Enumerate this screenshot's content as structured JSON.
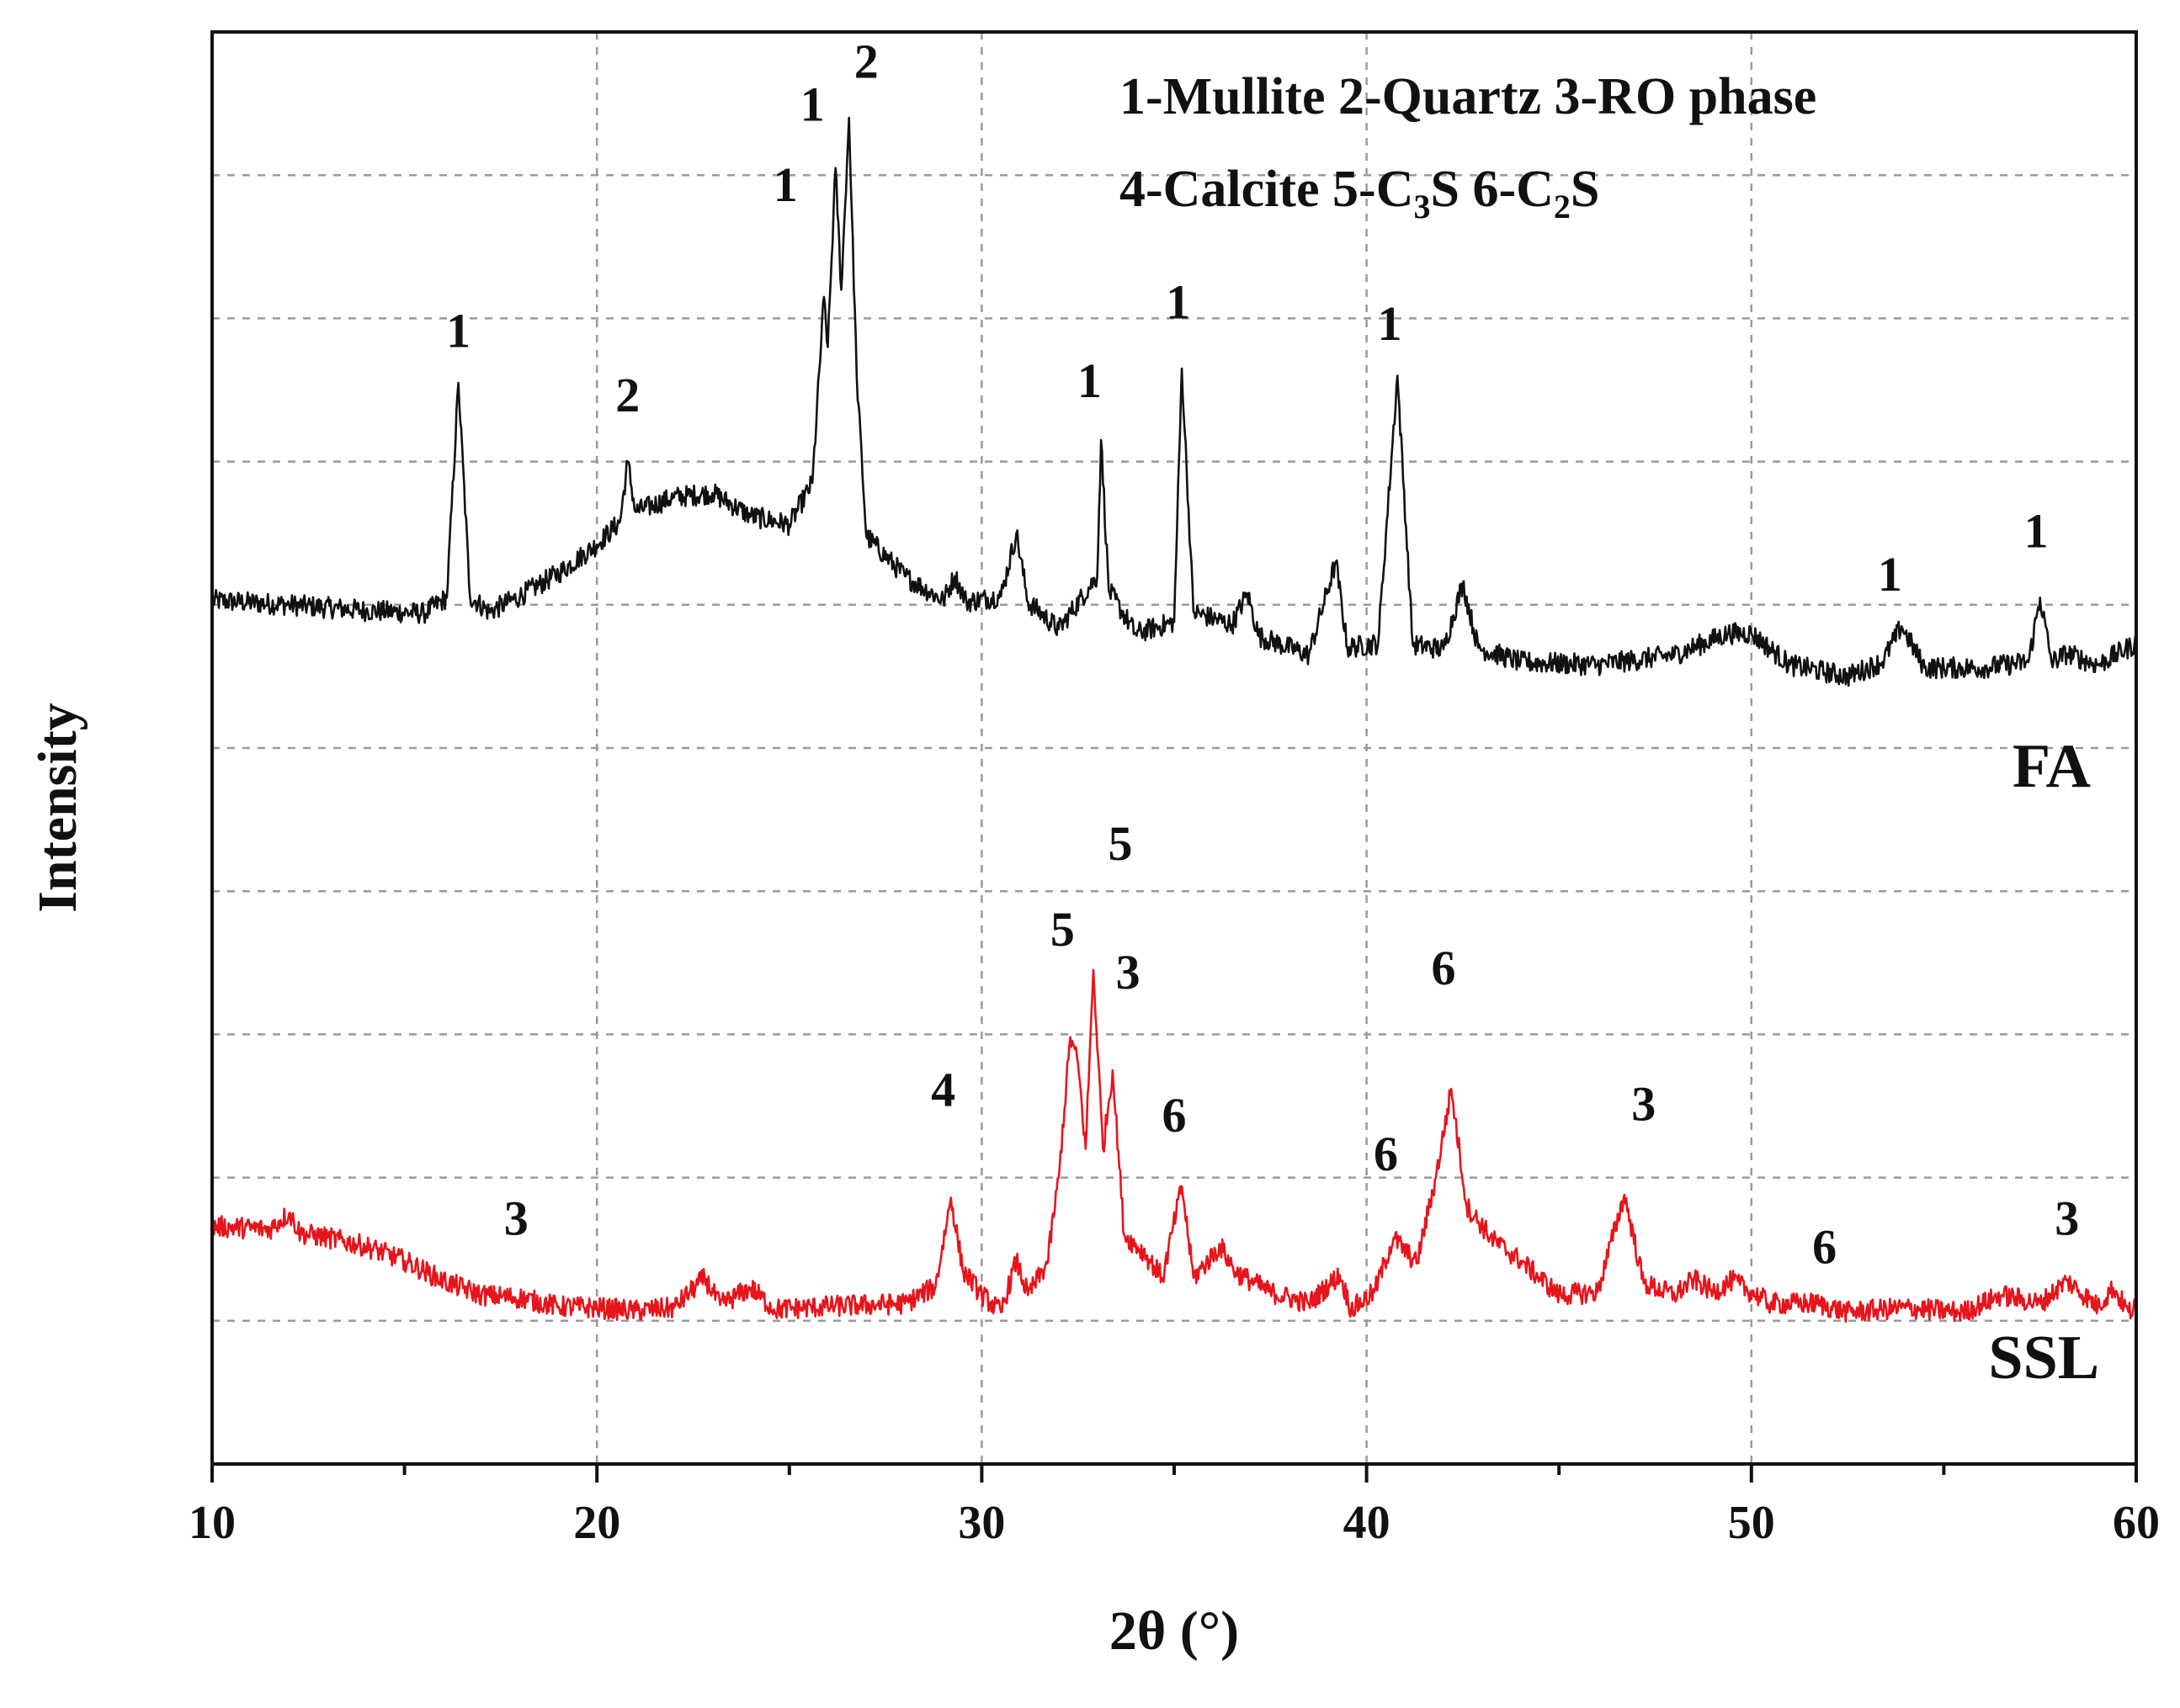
{
  "chart_data": {
    "type": "line",
    "xlabel": "2θ (°)",
    "ylabel": "Intensity",
    "xlim": [
      10,
      60
    ],
    "ylim": [
      0,
      100
    ],
    "xticks": [
      10,
      20,
      30,
      40,
      50,
      60
    ],
    "grid": true,
    "legend_lines": [
      "1-Mullite  2-Quartz  3-RO phase",
      "4-Calcite  5-C3S  6-C2S"
    ],
    "series": [
      {
        "name": "FA",
        "color": "#111111",
        "points": [
          [
            10,
            60.3
          ],
          [
            12,
            60.0
          ],
          [
            14,
            59.6
          ],
          [
            15.5,
            59.4
          ],
          [
            16.1,
            60.5
          ],
          [
            16.4,
            75.5
          ],
          [
            16.7,
            60.6
          ],
          [
            17.2,
            59.5
          ],
          [
            18,
            60.6
          ],
          [
            19,
            62.2
          ],
          [
            20,
            64.2
          ],
          [
            20.6,
            65.8
          ],
          [
            20.8,
            70.0
          ],
          [
            21.0,
            66.5
          ],
          [
            22,
            67.5
          ],
          [
            23,
            67.8
          ],
          [
            24,
            66.2
          ],
          [
            25,
            65.6
          ],
          [
            25.6,
            68.5
          ],
          [
            25.9,
            81.5
          ],
          [
            26.0,
            78.0
          ],
          [
            26.2,
            90.5
          ],
          [
            26.35,
            82.0
          ],
          [
            26.55,
            94.0
          ],
          [
            26.75,
            76.0
          ],
          [
            27.0,
            64.8
          ],
          [
            28,
            62.0
          ],
          [
            29.0,
            60.3
          ],
          [
            29.3,
            62.0
          ],
          [
            29.6,
            60.2
          ],
          [
            30.5,
            60.6
          ],
          [
            30.9,
            65.0
          ],
          [
            31.2,
            60.2
          ],
          [
            32,
            58.3
          ],
          [
            33.0,
            62.0
          ],
          [
            33.1,
            71.5
          ],
          [
            33.3,
            61.0
          ],
          [
            34,
            58.0
          ],
          [
            35.0,
            58.8
          ],
          [
            35.2,
            76.5
          ],
          [
            35.5,
            59.5
          ],
          [
            36.5,
            58.6
          ],
          [
            36.9,
            60.8
          ],
          [
            37.2,
            57.8
          ],
          [
            38.5,
            56.5
          ],
          [
            39.2,
            63.0
          ],
          [
            39.5,
            57.0
          ],
          [
            40.3,
            57.3
          ],
          [
            40.8,
            76.0
          ],
          [
            41.2,
            57.2
          ],
          [
            42,
            56.9
          ],
          [
            42.5,
            61.5
          ],
          [
            42.9,
            57.0
          ],
          [
            44,
            56.0
          ],
          [
            46,
            55.8
          ],
          [
            48,
            56.5
          ],
          [
            49.4,
            58.0
          ],
          [
            50,
            58.0
          ],
          [
            51,
            55.8
          ],
          [
            52.5,
            55.0
          ],
          [
            53.4,
            56.0
          ],
          [
            53.9,
            58.5
          ],
          [
            54.5,
            55.6
          ],
          [
            56,
            55.6
          ],
          [
            57.2,
            56.0
          ],
          [
            57.5,
            60.5
          ],
          [
            57.8,
            56.0
          ],
          [
            58.2,
            56.6
          ],
          [
            59,
            55.8
          ],
          [
            60,
            57.3
          ]
        ]
      },
      {
        "name": "SSL",
        "color": "#e8141b",
        "points": [
          [
            10,
            16.6
          ],
          [
            11.5,
            16.4
          ],
          [
            12,
            17.5
          ],
          [
            12.3,
            16.1
          ],
          [
            13,
            15.8
          ],
          [
            14,
            15.2
          ],
          [
            15,
            14.2
          ],
          [
            16,
            12.8
          ],
          [
            17,
            11.8
          ],
          [
            18,
            11.6
          ],
          [
            19,
            11.0
          ],
          [
            20,
            10.9
          ],
          [
            21,
            10.7
          ],
          [
            22,
            10.9
          ],
          [
            22.8,
            13.0
          ],
          [
            23.2,
            11.1
          ],
          [
            24,
            12.3
          ],
          [
            24.6,
            10.8
          ],
          [
            26,
            11.0
          ],
          [
            28,
            11.2
          ],
          [
            28.8,
            12.4
          ],
          [
            29.2,
            18.6
          ],
          [
            29.5,
            13.6
          ],
          [
            30,
            11.8
          ],
          [
            30.5,
            10.6
          ],
          [
            30.9,
            14.2
          ],
          [
            31.2,
            11.8
          ],
          [
            31.7,
            14.0
          ],
          [
            32.0,
            20.0
          ],
          [
            32.3,
            29.8
          ],
          [
            32.5,
            28.0
          ],
          [
            32.7,
            22.0
          ],
          [
            32.9,
            34.5
          ],
          [
            33.15,
            22.0
          ],
          [
            33.4,
            27.5
          ],
          [
            33.7,
            16.0
          ],
          [
            34.2,
            14.8
          ],
          [
            34.7,
            13.0
          ],
          [
            35.2,
            19.4
          ],
          [
            35.5,
            13.0
          ],
          [
            36.2,
            15.2
          ],
          [
            36.6,
            13.4
          ],
          [
            37.5,
            12.0
          ],
          [
            38.5,
            11.2
          ],
          [
            39.3,
            13.2
          ],
          [
            39.6,
            10.8
          ],
          [
            40.2,
            12.0
          ],
          [
            40.7,
            15.8
          ],
          [
            41.3,
            14.0
          ],
          [
            41.8,
            20.0
          ],
          [
            42.2,
            26.2
          ],
          [
            42.6,
            18.0
          ],
          [
            43.3,
            15.6
          ],
          [
            44,
            14.2
          ],
          [
            45,
            11.8
          ],
          [
            46,
            12.0
          ],
          [
            46.7,
            18.8
          ],
          [
            47.2,
            12.6
          ],
          [
            48,
            11.8
          ],
          [
            48.5,
            12.9
          ],
          [
            49,
            12.0
          ],
          [
            49.5,
            12.8
          ],
          [
            50.5,
            11.2
          ],
          [
            51.7,
            11.2
          ],
          [
            52.5,
            10.6
          ],
          [
            54,
            10.9
          ],
          [
            55.5,
            10.6
          ],
          [
            56.5,
            11.8
          ],
          [
            57.5,
            11.2
          ],
          [
            58.2,
            12.8
          ],
          [
            59,
            11.0
          ],
          [
            59.4,
            12.3
          ],
          [
            59.8,
            10.6
          ],
          [
            60,
            11.0
          ]
        ]
      }
    ],
    "series_labels": [
      {
        "text": "FA",
        "x": 57.8,
        "y": 47.3
      },
      {
        "text": "SSL",
        "x": 57.6,
        "y": 6.0
      }
    ],
    "annotations": [
      {
        "text": "1",
        "series": "FA",
        "x": 16.4,
        "y": 78.0
      },
      {
        "text": "2",
        "series": "FA",
        "x": 20.8,
        "y": 73.5
      },
      {
        "text": "1",
        "series": "FA",
        "x": 24.9,
        "y": 88.2
      },
      {
        "text": "1",
        "series": "FA",
        "x": 25.6,
        "y": 93.8
      },
      {
        "text": "2",
        "series": "FA",
        "x": 27.0,
        "y": 96.8
      },
      {
        "text": "1",
        "series": "FA",
        "x": 32.8,
        "y": 74.5
      },
      {
        "text": "1",
        "series": "FA",
        "x": 35.1,
        "y": 80.0
      },
      {
        "text": "1",
        "series": "FA",
        "x": 40.6,
        "y": 78.5
      },
      {
        "text": "1",
        "series": "FA",
        "x": 53.6,
        "y": 61.0
      },
      {
        "text": "1",
        "series": "FA",
        "x": 57.4,
        "y": 64.0
      },
      {
        "text": "5",
        "series": "SSL",
        "x": 32.1,
        "y": 36.2
      },
      {
        "text": "5",
        "series": "SSL",
        "x": 33.6,
        "y": 42.2
      },
      {
        "text": "3",
        "series": "SSL",
        "x": 33.8,
        "y": 33.2
      },
      {
        "text": "4",
        "series": "SSL",
        "x": 29.0,
        "y": 25.0
      },
      {
        "text": "6",
        "series": "SSL",
        "x": 35.0,
        "y": 23.2
      },
      {
        "text": "6",
        "series": "SSL",
        "x": 40.5,
        "y": 20.5
      },
      {
        "text": "6",
        "series": "SSL",
        "x": 42.0,
        "y": 33.5
      },
      {
        "text": "3",
        "series": "SSL",
        "x": 47.2,
        "y": 24.0
      },
      {
        "text": "6",
        "series": "SSL",
        "x": 51.9,
        "y": 14.0
      },
      {
        "text": "3",
        "series": "SSL",
        "x": 17.9,
        "y": 16.0
      },
      {
        "text": "3",
        "series": "SSL",
        "x": 58.2,
        "y": 16.0
      }
    ]
  }
}
